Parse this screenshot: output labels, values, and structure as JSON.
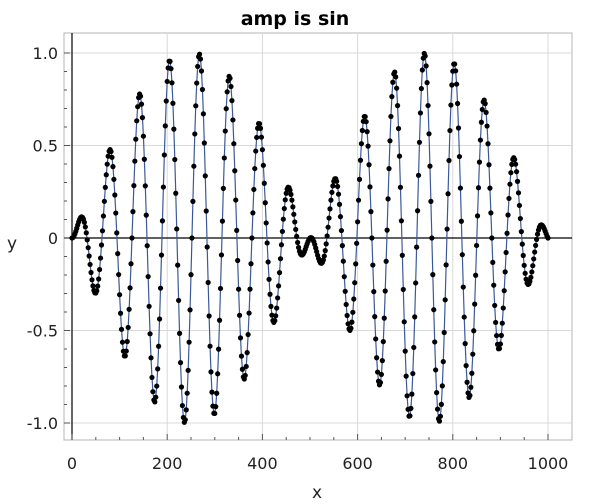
{
  "chart_data": {
    "type": "scatter",
    "title": "amp is sin",
    "xlabel": "x",
    "ylabel": "y",
    "xlim": [
      0,
      1000
    ],
    "ylim": [
      -1.0,
      1.0
    ],
    "x_ticks": [
      0,
      200,
      400,
      600,
      800,
      1000
    ],
    "x_tick_labels": [
      "0",
      "200",
      "400",
      "600",
      "800",
      "1000"
    ],
    "y_ticks": [
      1.0,
      0.5,
      0,
      -0.5,
      -1.0
    ],
    "y_tick_labels": [
      "1.0",
      "0.5",
      "0",
      "-0.5",
      "-1.0"
    ],
    "grid": true,
    "series": [
      {
        "formula": "y = sin(2*pi*x/1000) * sin(2*pi*x/63)",
        "x_start": 0,
        "x_end": 1000,
        "x_step": 2,
        "marker_color": "#000000",
        "line_color": "#3b5998"
      }
    ]
  }
}
